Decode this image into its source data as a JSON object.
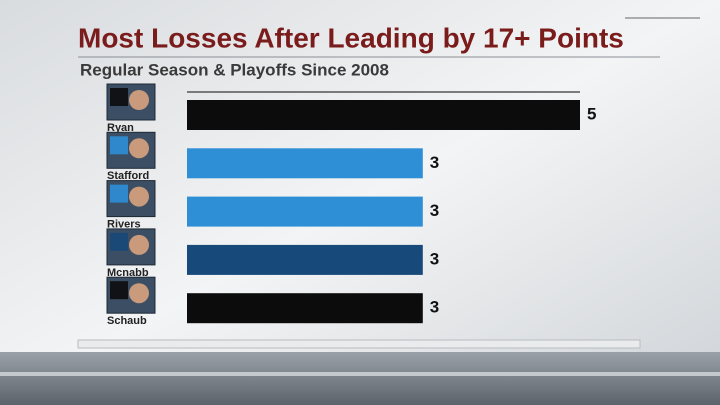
{
  "chart_data": {
    "type": "hbar",
    "title": "Most Losses After Leading by 17+ Points",
    "subtitle": "Regular Season & Playoffs Since 2008",
    "categories": [
      "Ryan",
      "Stafford",
      "Rivers",
      "Mcnabb",
      "Schaub"
    ],
    "values": [
      5,
      3,
      3,
      3,
      3
    ],
    "colors": [
      "#0c0c0c",
      "#2f8fd6",
      "#2f8fd6",
      "#17497a",
      "#0c0c0c"
    ]
  }
}
